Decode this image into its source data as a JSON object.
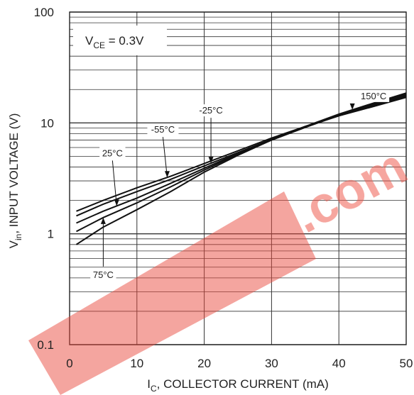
{
  "chart_data": {
    "type": "line",
    "ylabel": "INPUT VOLTAGE (V)",
    "ylabel_symbol": "V",
    "ylabel_symbol_sub": "in",
    "xlabel": "COLLECTOR CURRENT (mA)",
    "xlabel_symbol": "I",
    "xlabel_symbol_sub": "C",
    "xlim": [
      0,
      50
    ],
    "ylim": [
      0.1,
      100
    ],
    "y_scale": "log",
    "grid": true,
    "x_ticks": [
      "0",
      "10",
      "20",
      "30",
      "40",
      "50"
    ],
    "y_ticks": [
      "100",
      "10",
      "1",
      "0.1"
    ],
    "condition": {
      "symbol": "V",
      "sub": "CE",
      "text": " = 0.3V"
    },
    "series": [
      {
        "name": "-55°C",
        "points": [
          [
            1,
            1.6
          ],
          [
            5,
            2.0
          ],
          [
            10,
            2.6
          ],
          [
            15,
            3.3
          ],
          [
            20,
            4.3
          ],
          [
            25,
            5.6
          ],
          [
            30,
            7.3
          ],
          [
            35,
            9.3
          ],
          [
            40,
            11.6
          ],
          [
            45,
            14.0
          ],
          [
            50,
            17.0
          ]
        ]
      },
      {
        "name": "-25°C",
        "points": [
          [
            1,
            1.45
          ],
          [
            5,
            1.85
          ],
          [
            10,
            2.4
          ],
          [
            15,
            3.1
          ],
          [
            20,
            4.1
          ],
          [
            25,
            5.4
          ],
          [
            30,
            7.1
          ],
          [
            35,
            9.2
          ],
          [
            40,
            11.6
          ],
          [
            45,
            14.2
          ],
          [
            50,
            17.4
          ]
        ]
      },
      {
        "name": "25°C",
        "points": [
          [
            1,
            1.25
          ],
          [
            5,
            1.6
          ],
          [
            10,
            2.1
          ],
          [
            15,
            2.85
          ],
          [
            20,
            3.9
          ],
          [
            25,
            5.3
          ],
          [
            30,
            7.0
          ],
          [
            35,
            9.1
          ],
          [
            40,
            11.7
          ],
          [
            45,
            14.4
          ],
          [
            50,
            17.8
          ]
        ]
      },
      {
        "name": "75°C",
        "points": [
          [
            1,
            1.05
          ],
          [
            5,
            1.4
          ],
          [
            10,
            1.9
          ],
          [
            15,
            2.65
          ],
          [
            20,
            3.75
          ],
          [
            25,
            5.2
          ],
          [
            30,
            7.0
          ],
          [
            35,
            9.2
          ],
          [
            40,
            11.8
          ],
          [
            45,
            14.6
          ],
          [
            50,
            18.2
          ]
        ]
      },
      {
        "name": "150°C",
        "points": [
          [
            1,
            0.8
          ],
          [
            5,
            1.15
          ],
          [
            10,
            1.65
          ],
          [
            15,
            2.4
          ],
          [
            20,
            3.6
          ],
          [
            25,
            5.1
          ],
          [
            30,
            7.0
          ],
          [
            35,
            9.3
          ],
          [
            40,
            12.0
          ],
          [
            45,
            15.0
          ],
          [
            50,
            18.6
          ]
        ]
      }
    ],
    "annotations": [
      {
        "text": "-55°C",
        "series": "-55°C",
        "at_x": 14.5
      },
      {
        "text": "-25°C",
        "series": "-25°C",
        "at_x": 21
      },
      {
        "text": "25°C",
        "series": "25°C",
        "at_x": 7
      },
      {
        "text": "75°C",
        "series": "75°C",
        "at_x": 5
      },
      {
        "text": "150°C",
        "series": "150°C",
        "at_x": 42
      }
    ],
    "watermark": "EEPW .com"
  }
}
